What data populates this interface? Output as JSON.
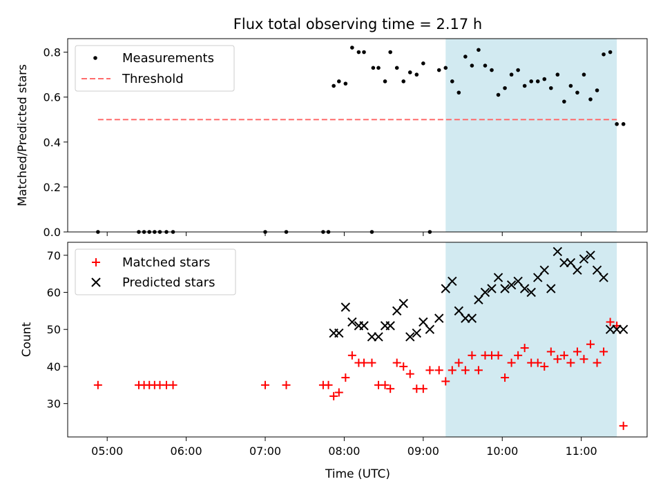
{
  "chart_data": [
    {
      "type": "scatter",
      "title": "Flux total observing time = 2.17 h",
      "xlabel": "",
      "ylabel": "Matched/Predicted stars",
      "xlim": [
        "04:30",
        "11:50"
      ],
      "ylim": [
        0,
        0.86
      ],
      "yticks": [
        "0.0",
        "0.2",
        "0.4",
        "0.6",
        "0.8"
      ],
      "ytick_values": [
        0,
        0.2,
        0.4,
        0.6,
        0.8
      ],
      "highlight_span": [
        "09:17",
        "11:27"
      ],
      "highlight_color": "#add8e6",
      "legend_position": "top-left",
      "series": [
        {
          "name": "Measurements",
          "marker": "dot",
          "color": "#000000",
          "x": [
            "04:53",
            "05:24",
            "05:28",
            "05:32",
            "05:36",
            "05:40",
            "05:45",
            "05:50",
            "07:00",
            "07:16",
            "07:44",
            "07:48",
            "07:52",
            "07:56",
            "08:01",
            "08:06",
            "08:11",
            "08:15",
            "08:21",
            "08:22",
            "08:26",
            "08:31",
            "08:35",
            "08:40",
            "08:45",
            "08:50",
            "08:55",
            "09:00",
            "09:05",
            "09:12",
            "09:17",
            "09:22",
            "09:27",
            "09:32",
            "09:37",
            "09:42",
            "09:47",
            "09:52",
            "09:57",
            "10:02",
            "10:07",
            "10:12",
            "10:17",
            "10:22",
            "10:27",
            "10:32",
            "10:37",
            "10:42",
            "10:47",
            "10:52",
            "10:57",
            "11:02",
            "11:07",
            "11:12",
            "11:17",
            "11:22",
            "11:27",
            "11:32"
          ],
          "y": [
            0,
            0,
            0,
            0,
            0,
            0,
            0,
            0,
            0,
            0,
            0,
            0,
            0.65,
            0.67,
            0.66,
            0.82,
            0.8,
            0.8,
            0,
            0.73,
            0.73,
            0.67,
            0.8,
            0.73,
            0.67,
            0.71,
            0.7,
            0.75,
            0,
            0.72,
            0.73,
            0.67,
            0.62,
            0.78,
            0.74,
            0.81,
            0.74,
            0.72,
            0.61,
            0.64,
            0.7,
            0.72,
            0.65,
            0.67,
            0.67,
            0.68,
            0.64,
            0.7,
            0.58,
            0.65,
            0.62,
            0.7,
            0.59,
            0.63,
            0.79,
            0.8,
            0.48,
            0.48
          ]
        },
        {
          "name": "Threshold",
          "type": "line",
          "style": "dashed",
          "color": "#ff6b6b",
          "x": [
            "04:53",
            "11:27"
          ],
          "y": [
            0.5,
            0.5
          ]
        }
      ]
    },
    {
      "type": "scatter",
      "title": "",
      "xlabel": "Time (UTC)",
      "ylabel": "Count",
      "xlim": [
        "04:30",
        "11:50"
      ],
      "ylim": [
        21,
        73.5
      ],
      "xticks": [
        "05:00",
        "06:00",
        "07:00",
        "08:00",
        "09:00",
        "10:00",
        "11:00"
      ],
      "yticks": [
        "30",
        "40",
        "50",
        "60",
        "70"
      ],
      "ytick_values": [
        30,
        40,
        50,
        60,
        70
      ],
      "highlight_span": [
        "09:17",
        "11:27"
      ],
      "highlight_color": "#add8e6",
      "legend_position": "top-left",
      "series": [
        {
          "name": "Matched stars",
          "marker": "plus",
          "color": "#ff0000",
          "x": [
            "04:53",
            "05:24",
            "05:28",
            "05:32",
            "05:36",
            "05:40",
            "05:45",
            "05:50",
            "07:00",
            "07:16",
            "07:44",
            "07:48",
            "07:52",
            "07:56",
            "08:01",
            "08:06",
            "08:11",
            "08:15",
            "08:21",
            "08:26",
            "08:31",
            "08:35",
            "08:40",
            "08:45",
            "08:50",
            "08:55",
            "09:00",
            "09:05",
            "09:12",
            "09:17",
            "09:22",
            "09:27",
            "09:32",
            "09:37",
            "09:42",
            "09:47",
            "09:52",
            "09:57",
            "10:02",
            "10:07",
            "10:12",
            "10:17",
            "10:22",
            "10:27",
            "10:32",
            "10:37",
            "10:42",
            "10:47",
            "10:52",
            "10:57",
            "11:02",
            "11:07",
            "11:12",
            "11:17",
            "11:22",
            "11:27",
            "11:32"
          ],
          "y": [
            35,
            35,
            35,
            35,
            35,
            35,
            35,
            35,
            35,
            35,
            35,
            35,
            32,
            33,
            37,
            43,
            41,
            41,
            41,
            35,
            35,
            34,
            41,
            40,
            38,
            34,
            34,
            39,
            39,
            36,
            39,
            41,
            39,
            43,
            39,
            43,
            43,
            43,
            37,
            41,
            43,
            45,
            41,
            41,
            40,
            44,
            42,
            43,
            41,
            44,
            42,
            46,
            41,
            44,
            52,
            51,
            24
          ]
        },
        {
          "name": "Predicted stars",
          "marker": "x",
          "color": "#000000",
          "x": [
            "07:52",
            "07:56",
            "08:01",
            "08:06",
            "08:11",
            "08:15",
            "08:21",
            "08:26",
            "08:31",
            "08:35",
            "08:40",
            "08:45",
            "08:50",
            "08:55",
            "09:00",
            "09:05",
            "09:12",
            "09:17",
            "09:22",
            "09:27",
            "09:32",
            "09:37",
            "09:42",
            "09:47",
            "09:52",
            "09:57",
            "10:02",
            "10:07",
            "10:12",
            "10:17",
            "10:22",
            "10:27",
            "10:32",
            "10:37",
            "10:42",
            "10:47",
            "10:52",
            "10:57",
            "11:02",
            "11:07",
            "11:12",
            "11:17",
            "11:22",
            "11:27",
            "11:32"
          ],
          "y": [
            49,
            49,
            56,
            52,
            51,
            51,
            48,
            48,
            51,
            51,
            55,
            57,
            48,
            49,
            52,
            50,
            53,
            61,
            63,
            55,
            53,
            53,
            58,
            60,
            61,
            64,
            61,
            62,
            63,
            61,
            60,
            64,
            66,
            61,
            71,
            68,
            68,
            66,
            69,
            70,
            66,
            64,
            50,
            50,
            50
          ]
        }
      ]
    }
  ]
}
